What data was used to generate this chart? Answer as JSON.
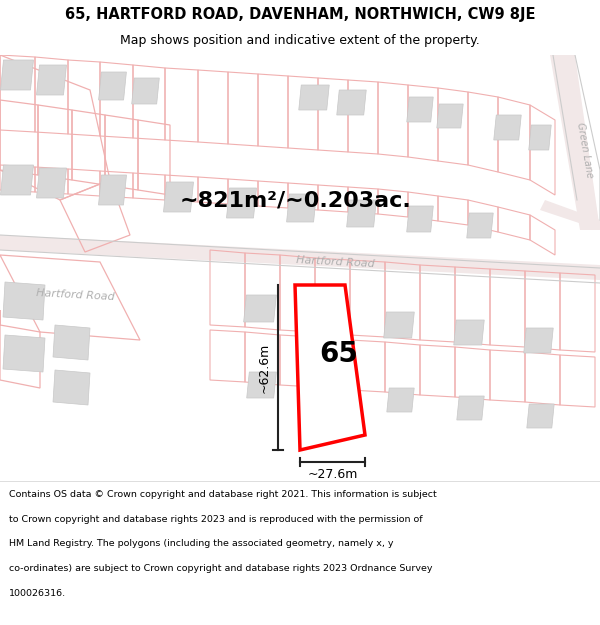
{
  "title_line1": "65, HARTFORD ROAD, DAVENHAM, NORTHWICH, CW9 8JE",
  "title_line2": "Map shows position and indicative extent of the property.",
  "area_text": "~821m²/~0.203ac.",
  "label_65": "65",
  "dim_width": "~27.6m",
  "dim_height": "~62.6m",
  "road_label_upper": "Hartford Road",
  "road_label_lower": "Hartford Road",
  "road_label_right": "Green Lane",
  "footer_lines": [
    "Contains OS data © Crown copyright and database right 2021. This information is subject",
    "to Crown copyright and database rights 2023 and is reproduced with the permission of",
    "HM Land Registry. The polygons (including the associated geometry, namely x, y",
    "co-ordinates) are subject to Crown copyright and database rights 2023 Ordnance Survey",
    "100026316."
  ],
  "map_bg": "#ffffff",
  "plot_color": "#ff0000",
  "road_fill": "#f2e8e8",
  "parcel_edge": "#f0b0b0",
  "building_fill": "#d8d8d8",
  "building_edge": "#c8c8c8",
  "dim_color": "#222222",
  "road_text_color": "#b0b0b0",
  "footer_bg": "#ffffff",
  "title_bg": "#ffffff",
  "title_fs": 10.5,
  "subtitle_fs": 9.0,
  "area_fs": 16,
  "label_fs": 20,
  "dim_fs": 9,
  "road_fs": 8,
  "footer_fs": 6.8
}
